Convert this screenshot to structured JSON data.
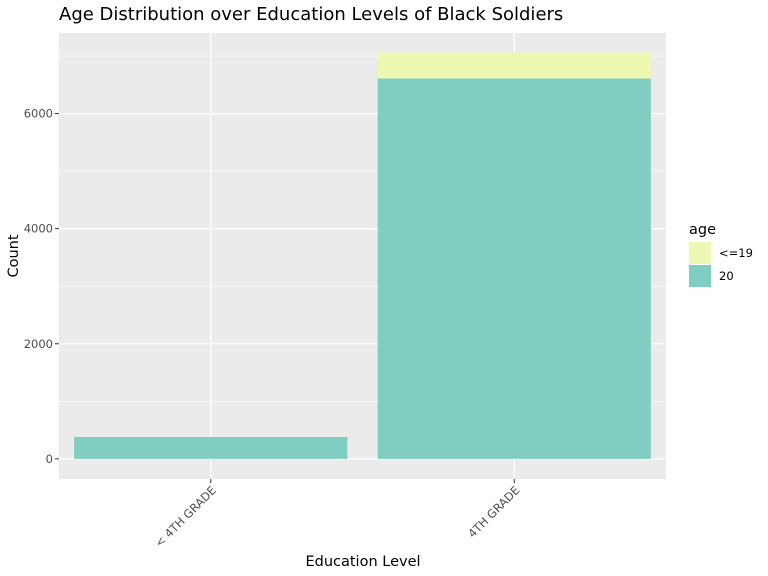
{
  "chart_data": {
    "type": "bar",
    "stacked": true,
    "title": "Age Distribution over Education Levels of Black Soldiers",
    "xlabel": "Education Level",
    "ylabel": "Count",
    "categories": [
      "< 4TH GRADE",
      "4TH GRADE"
    ],
    "series": [
      {
        "name": "20",
        "color": "#80CDC1",
        "values": [
          380,
          6610
        ]
      },
      {
        "name": "<=19",
        "color": "#EFF8B3",
        "values": [
          0,
          450
        ]
      }
    ],
    "ylim": [
      -350,
      7400
    ],
    "yticks": [
      0,
      2000,
      4000,
      6000
    ],
    "grid": true,
    "legend": {
      "title": "age",
      "position": "right",
      "order": [
        "<=19",
        "20"
      ]
    }
  }
}
